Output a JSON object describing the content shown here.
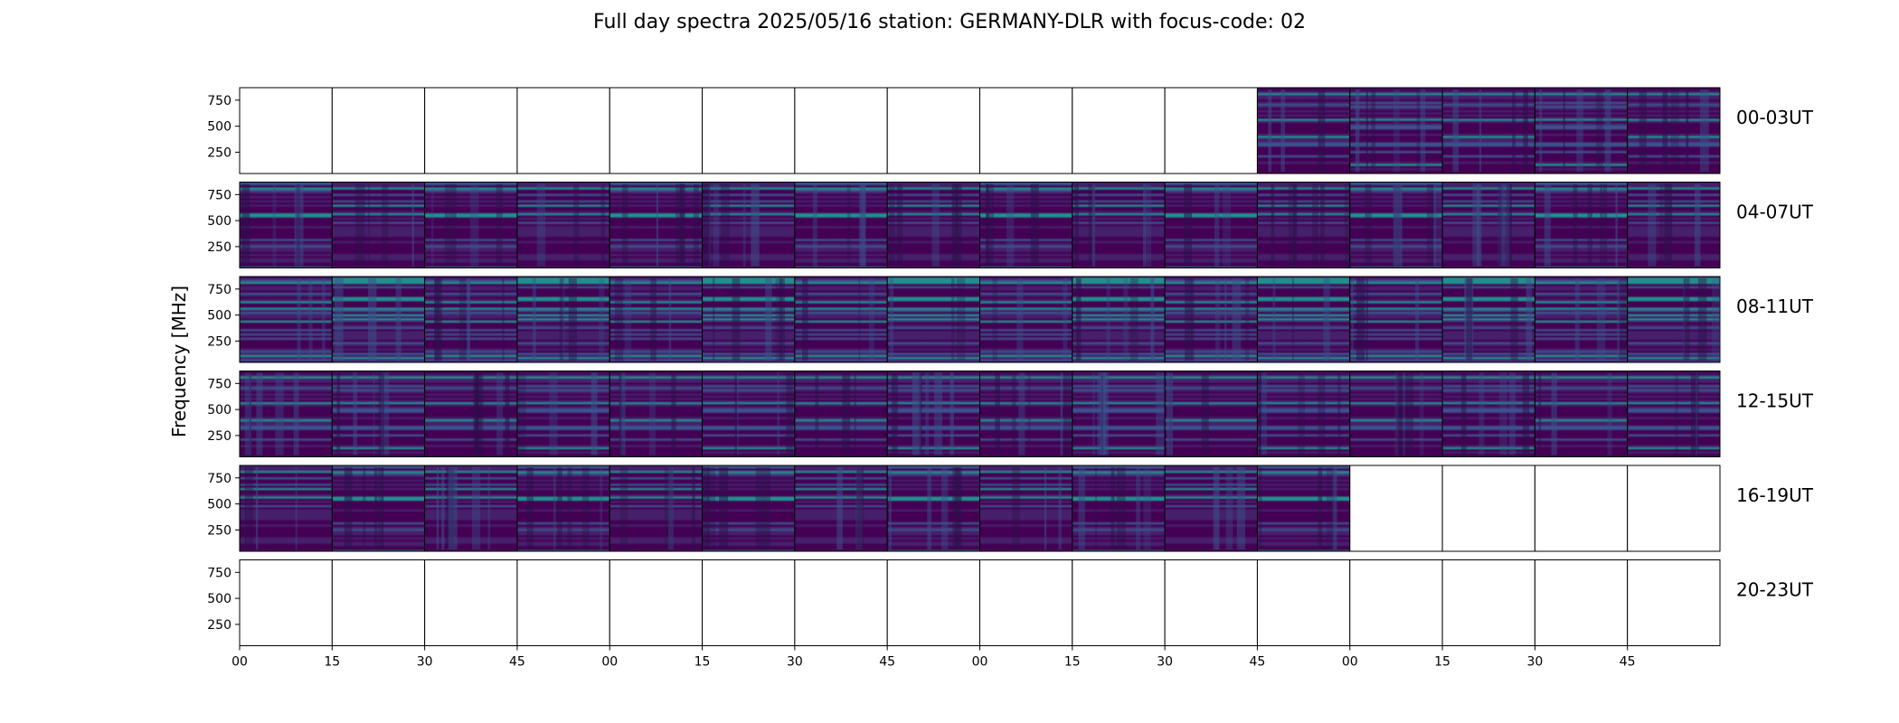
{
  "chart_data": {
    "type": "heatmap",
    "title": "Full day spectra 2025/05/16 station: GERMANY-DLR with focus-code: 02",
    "ylabel": "Frequency [MHz]",
    "xlabel": "",
    "yticks": [
      250,
      500,
      750
    ],
    "ylim": [
      45,
      870
    ],
    "xtick_labels": [
      "00",
      "15",
      "30",
      "45",
      "00",
      "15",
      "30",
      "45",
      "00",
      "15",
      "30",
      "45",
      "00",
      "15",
      "30",
      "45"
    ],
    "minutes_per_cell": 15,
    "cells_per_row": 16,
    "rows": [
      {
        "label": "00-03UT",
        "has_data": [
          false,
          false,
          false,
          false,
          false,
          false,
          false,
          false,
          false,
          false,
          false,
          true,
          true,
          true,
          true,
          true
        ]
      },
      {
        "label": "04-07UT",
        "has_data": [
          true,
          true,
          true,
          true,
          true,
          true,
          true,
          true,
          true,
          true,
          true,
          true,
          true,
          true,
          true,
          true
        ]
      },
      {
        "label": "08-11UT",
        "has_data": [
          true,
          true,
          true,
          true,
          true,
          true,
          true,
          true,
          true,
          true,
          true,
          true,
          true,
          true,
          true,
          true
        ]
      },
      {
        "label": "12-15UT",
        "has_data": [
          true,
          true,
          true,
          true,
          true,
          true,
          true,
          true,
          true,
          true,
          true,
          true,
          true,
          true,
          true,
          true
        ]
      },
      {
        "label": "16-19UT",
        "has_data": [
          true,
          true,
          true,
          true,
          true,
          true,
          true,
          true,
          true,
          true,
          true,
          true,
          false,
          false,
          false,
          false
        ]
      },
      {
        "label": "20-23UT",
        "has_data": [
          false,
          false,
          false,
          false,
          false,
          false,
          false,
          false,
          false,
          false,
          false,
          false,
          false,
          false,
          false,
          false
        ]
      }
    ],
    "colormap": [
      "#440154",
      "#3b528b",
      "#21908d",
      "#5dc863",
      "#fde725"
    ],
    "grid": false
  }
}
